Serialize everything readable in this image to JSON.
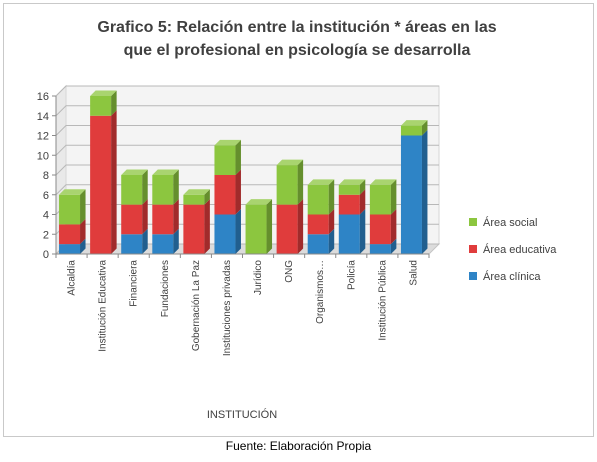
{
  "chart_data": {
    "type": "bar",
    "stacked": true,
    "three_d": true,
    "title_lines": [
      "Grafico 5: Relación  entre la institución  * áreas en las",
      "que el profesional en psicología se desarrolla"
    ],
    "xlabel": "INSTITUCIÓN",
    "ylabel": "",
    "ylim": [
      0,
      16
    ],
    "yticks": [
      0,
      2,
      4,
      6,
      8,
      10,
      12,
      14,
      16
    ],
    "grid": true,
    "legend_position": "right",
    "categories": [
      "Alcaldía",
      "Institución Educativa",
      "Financiera",
      "Fundaciones",
      "Gobernación La Paz",
      "Instituciones privadas",
      "Jurídico",
      "ONG",
      "Organismos…",
      "Policía",
      "Institución Pública",
      "Salud"
    ],
    "series": [
      {
        "name": "Área clínica",
        "color": "#2e84c6",
        "values": [
          1,
          0,
          2,
          2,
          0,
          4,
          0,
          0,
          2,
          4,
          1,
          12
        ]
      },
      {
        "name": "Área educativa",
        "color": "#e03c3c",
        "values": [
          2,
          14,
          3,
          3,
          5,
          4,
          0,
          5,
          2,
          2,
          3,
          0
        ]
      },
      {
        "name": "Área social",
        "color": "#8cc63f",
        "values": [
          3,
          2,
          3,
          3,
          1,
          3,
          5,
          4,
          3,
          1,
          3,
          1
        ]
      }
    ],
    "legend_order": [
      "Área social",
      "Área educativa",
      "Área clínica"
    ]
  },
  "source_note": "Fuente: Elaboración Propia"
}
